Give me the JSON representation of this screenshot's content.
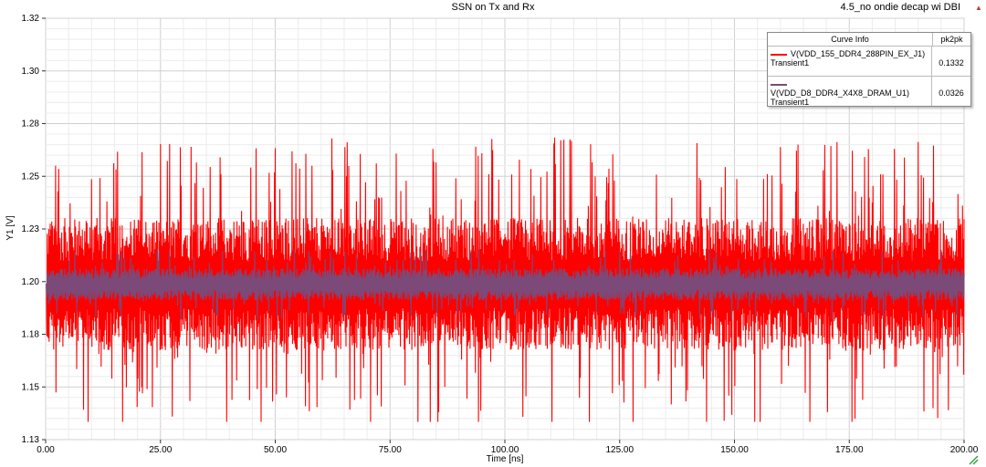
{
  "chart_data": {
    "type": "line",
    "title": "SSN on Tx and Rx",
    "top_right_label": "4.5_no ondie decap wi DBI",
    "xlabel": "Time [ns]",
    "ylabel": "Y1 [V]",
    "xlim": [
      0,
      200
    ],
    "ylim": [
      1.13,
      1.32
    ],
    "x_ticks": [
      "0.00",
      "25.00",
      "50.00",
      "75.00",
      "100.00",
      "125.00",
      "150.00",
      "175.00",
      "200.00"
    ],
    "y_ticks": [
      "1.13",
      "1.15",
      "1.18",
      "1.20",
      "1.23",
      "1.25",
      "1.28",
      "1.30",
      "1.32"
    ],
    "grid": true,
    "legend_position": "top-right",
    "legend_header": {
      "curve_info": "Curve Info",
      "metric": "pk2pk"
    },
    "series": [
      {
        "name": "V(VDD_155_DDR4_288PIN_EX_J1)",
        "sub_label": "Transient1",
        "pk2pk": "0.1332",
        "color": "#ff0000",
        "baseline": 1.2,
        "max": 1.271,
        "min": 1.138
      },
      {
        "name": "V(VDD_D8_DDR4_X4X8_DRAM_U1)",
        "sub_label": "Transient1",
        "pk2pk": "0.0326",
        "color": "#7b4a78",
        "baseline": 1.2,
        "max": 1.216,
        "min": 1.184
      }
    ]
  }
}
